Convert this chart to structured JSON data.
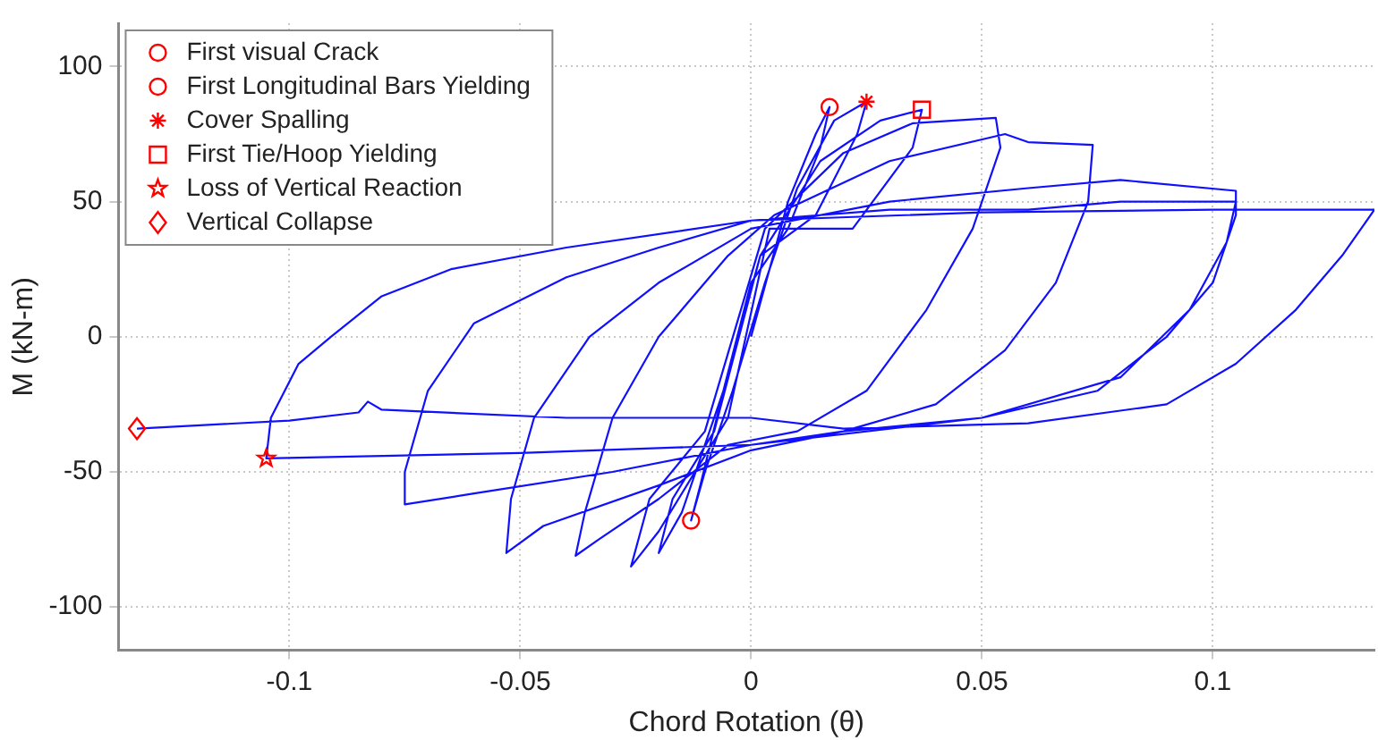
{
  "chart_data": {
    "type": "line",
    "xlabel": "Chord Rotation (θ)",
    "ylabel": "M (kN-m)",
    "xlim": [
      -0.137,
      0.135
    ],
    "ylim": [
      -116,
      116
    ],
    "xticks": [
      -0.1,
      -0.05,
      0,
      0.05,
      0.1
    ],
    "yticks": [
      -100,
      -50,
      0,
      50,
      100
    ],
    "grid": true,
    "legend": "top left",
    "series": [
      {
        "color": "#1010ff",
        "marker": "none",
        "x": [
          0,
          0.008,
          0.014,
          0.017,
          0.015,
          0.008,
          0,
          -0.006,
          -0.011,
          -0.013,
          -0.01,
          -0.004,
          0.003,
          0.01,
          0.018,
          0.025,
          0.023,
          0.014,
          0.002,
          -0.006,
          -0.015,
          -0.02,
          -0.017,
          -0.008,
          0.002,
          0.015,
          0.028,
          0.037,
          0.035,
          0.022,
          0.004,
          -0.005,
          -0.02,
          -0.026,
          -0.022,
          -0.01,
          0.003,
          0.02,
          0.035,
          0.053,
          0.054,
          0.048,
          0.038,
          0.025,
          0.01,
          -0.005,
          -0.02,
          -0.033,
          -0.038,
          -0.036,
          -0.03,
          -0.02,
          -0.005,
          0.005,
          0.03,
          0.055,
          0.06,
          0.074,
          0.073,
          0.066,
          0.055,
          0.04,
          0.02,
          0,
          -0.02,
          -0.045,
          -0.053,
          -0.052,
          -0.047,
          -0.035,
          -0.02,
          0,
          0.03,
          0.06,
          0.08,
          0.105,
          0.105,
          0.1,
          0.09,
          0.075,
          0.05,
          0.02,
          0,
          -0.03,
          -0.06,
          -0.075,
          -0.075,
          -0.07,
          -0.06,
          -0.04,
          -0.02,
          0,
          0.03,
          0.06,
          0.08,
          0.105,
          0.103,
          0.095,
          0.08,
          0.05,
          0,
          -0.05,
          -0.105,
          -0.104,
          -0.098,
          -0.091,
          -0.08,
          -0.065,
          -0.04,
          0,
          0.05,
          0.1,
          0.135,
          0.128,
          0.118,
          0.105,
          0.09,
          0.06,
          0.02,
          0,
          -0.04,
          -0.08,
          -0.083,
          -0.085,
          -0.1,
          -0.133
        ],
        "values": [
          0,
          50,
          75,
          85,
          70,
          40,
          20,
          -20,
          -55,
          -68,
          -50,
          -20,
          20,
          55,
          80,
          87,
          75,
          45,
          30,
          -20,
          -65,
          -80,
          -60,
          -35,
          30,
          65,
          80,
          84,
          70,
          40,
          40,
          -30,
          -72,
          -85,
          -60,
          -35,
          40,
          68,
          79,
          81,
          70,
          40,
          10,
          -20,
          -35,
          -40,
          -60,
          -75,
          -81,
          -65,
          -30,
          0,
          30,
          45,
          65,
          75,
          72,
          71,
          50,
          20,
          -5,
          -25,
          -35,
          -42,
          -55,
          -70,
          -80,
          -60,
          -30,
          0,
          20,
          40,
          50,
          55,
          58,
          54,
          45,
          20,
          0,
          -20,
          -30,
          -35,
          -40,
          -50,
          -58,
          -62,
          -50,
          -20,
          5,
          22,
          33,
          43,
          47,
          47,
          50,
          50,
          35,
          10,
          -15,
          -30,
          -40,
          -43,
          -45,
          -30,
          -10,
          0,
          15,
          25,
          33,
          43,
          46,
          47,
          47,
          30,
          10,
          -10,
          -25,
          -32,
          -34,
          -30,
          -30,
          -27,
          -24,
          -28,
          -31,
          -34
        ]
      },
      {
        "type": "scatter",
        "name": "First visual Crack",
        "color": "#ff0000",
        "marker": "circle",
        "x": [
          0.017
        ],
        "values": [
          85
        ]
      },
      {
        "type": "scatter",
        "name": "First Longitudinal Bars Yielding",
        "color": "#ff0000",
        "marker": "circle",
        "x": [
          -0.013
        ],
        "values": [
          -68
        ]
      },
      {
        "type": "scatter",
        "name": "Cover Spalling",
        "color": "#ff0000",
        "marker": "cross",
        "x": [
          0.025
        ],
        "values": [
          87
        ]
      },
      {
        "type": "scatter",
        "name": "First Tie/Hoop Yielding",
        "color": "#ff0000",
        "marker": "square",
        "x": [
          0.037
        ],
        "values": [
          84
        ]
      },
      {
        "type": "scatter",
        "name": "Loss of Vertical Reaction",
        "color": "#ff0000",
        "marker": "star",
        "x": [
          -0.105
        ],
        "values": [
          -45
        ]
      },
      {
        "type": "scatter",
        "name": "Vertical Collapse",
        "color": "#ff0000",
        "marker": "diamond",
        "x": [
          -0.133
        ],
        "values": [
          -34
        ]
      }
    ]
  }
}
